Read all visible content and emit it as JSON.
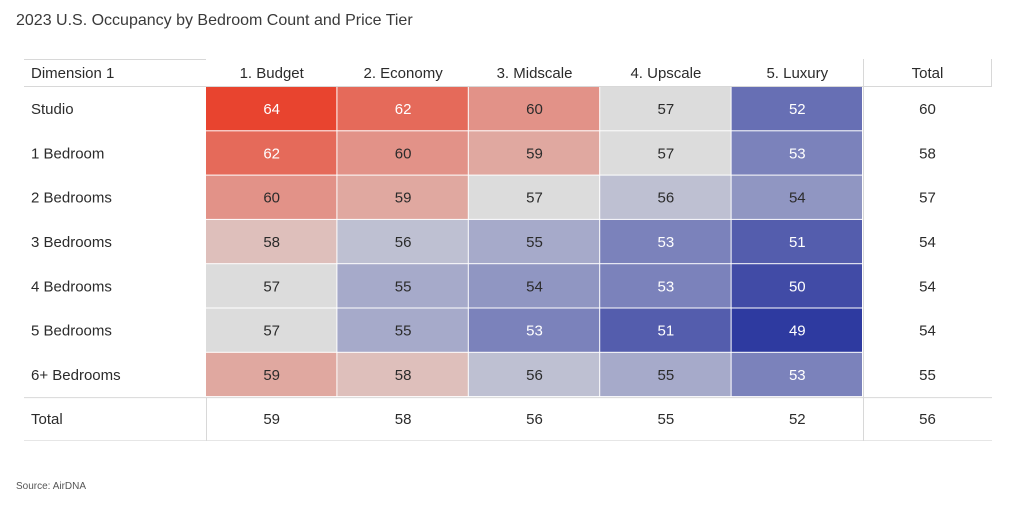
{
  "title": "2023 U.S. Occupancy by Bedroom Count and Price Tier",
  "source": "Source: AirDNA",
  "chart_data": {
    "type": "heatmap",
    "row_header": "Dimension 1",
    "columns": [
      "1. Budget",
      "2. Economy",
      "3. Midscale",
      "4. Upscale",
      "5. Luxury"
    ],
    "total_label": "Total",
    "rows": [
      "Studio",
      "1 Bedroom",
      "2 Bedrooms",
      "3 Bedrooms",
      "4 Bedrooms",
      "5 Bedrooms",
      "6+ Bedrooms"
    ],
    "values": [
      [
        64,
        62,
        60,
        57,
        52
      ],
      [
        62,
        60,
        59,
        57,
        53
      ],
      [
        60,
        59,
        57,
        56,
        54
      ],
      [
        58,
        56,
        55,
        53,
        51
      ],
      [
        57,
        55,
        54,
        53,
        50
      ],
      [
        57,
        55,
        53,
        51,
        49
      ],
      [
        59,
        58,
        56,
        55,
        53
      ]
    ],
    "row_totals": [
      60,
      58,
      57,
      54,
      54,
      54,
      55
    ],
    "column_totals": [
      59,
      58,
      56,
      55,
      52
    ],
    "grand_total": 56,
    "color_scale": {
      "low": "#2e3aa0",
      "mid": "#dcdcdc",
      "high": "#e8442f",
      "midpoint": 57
    }
  }
}
